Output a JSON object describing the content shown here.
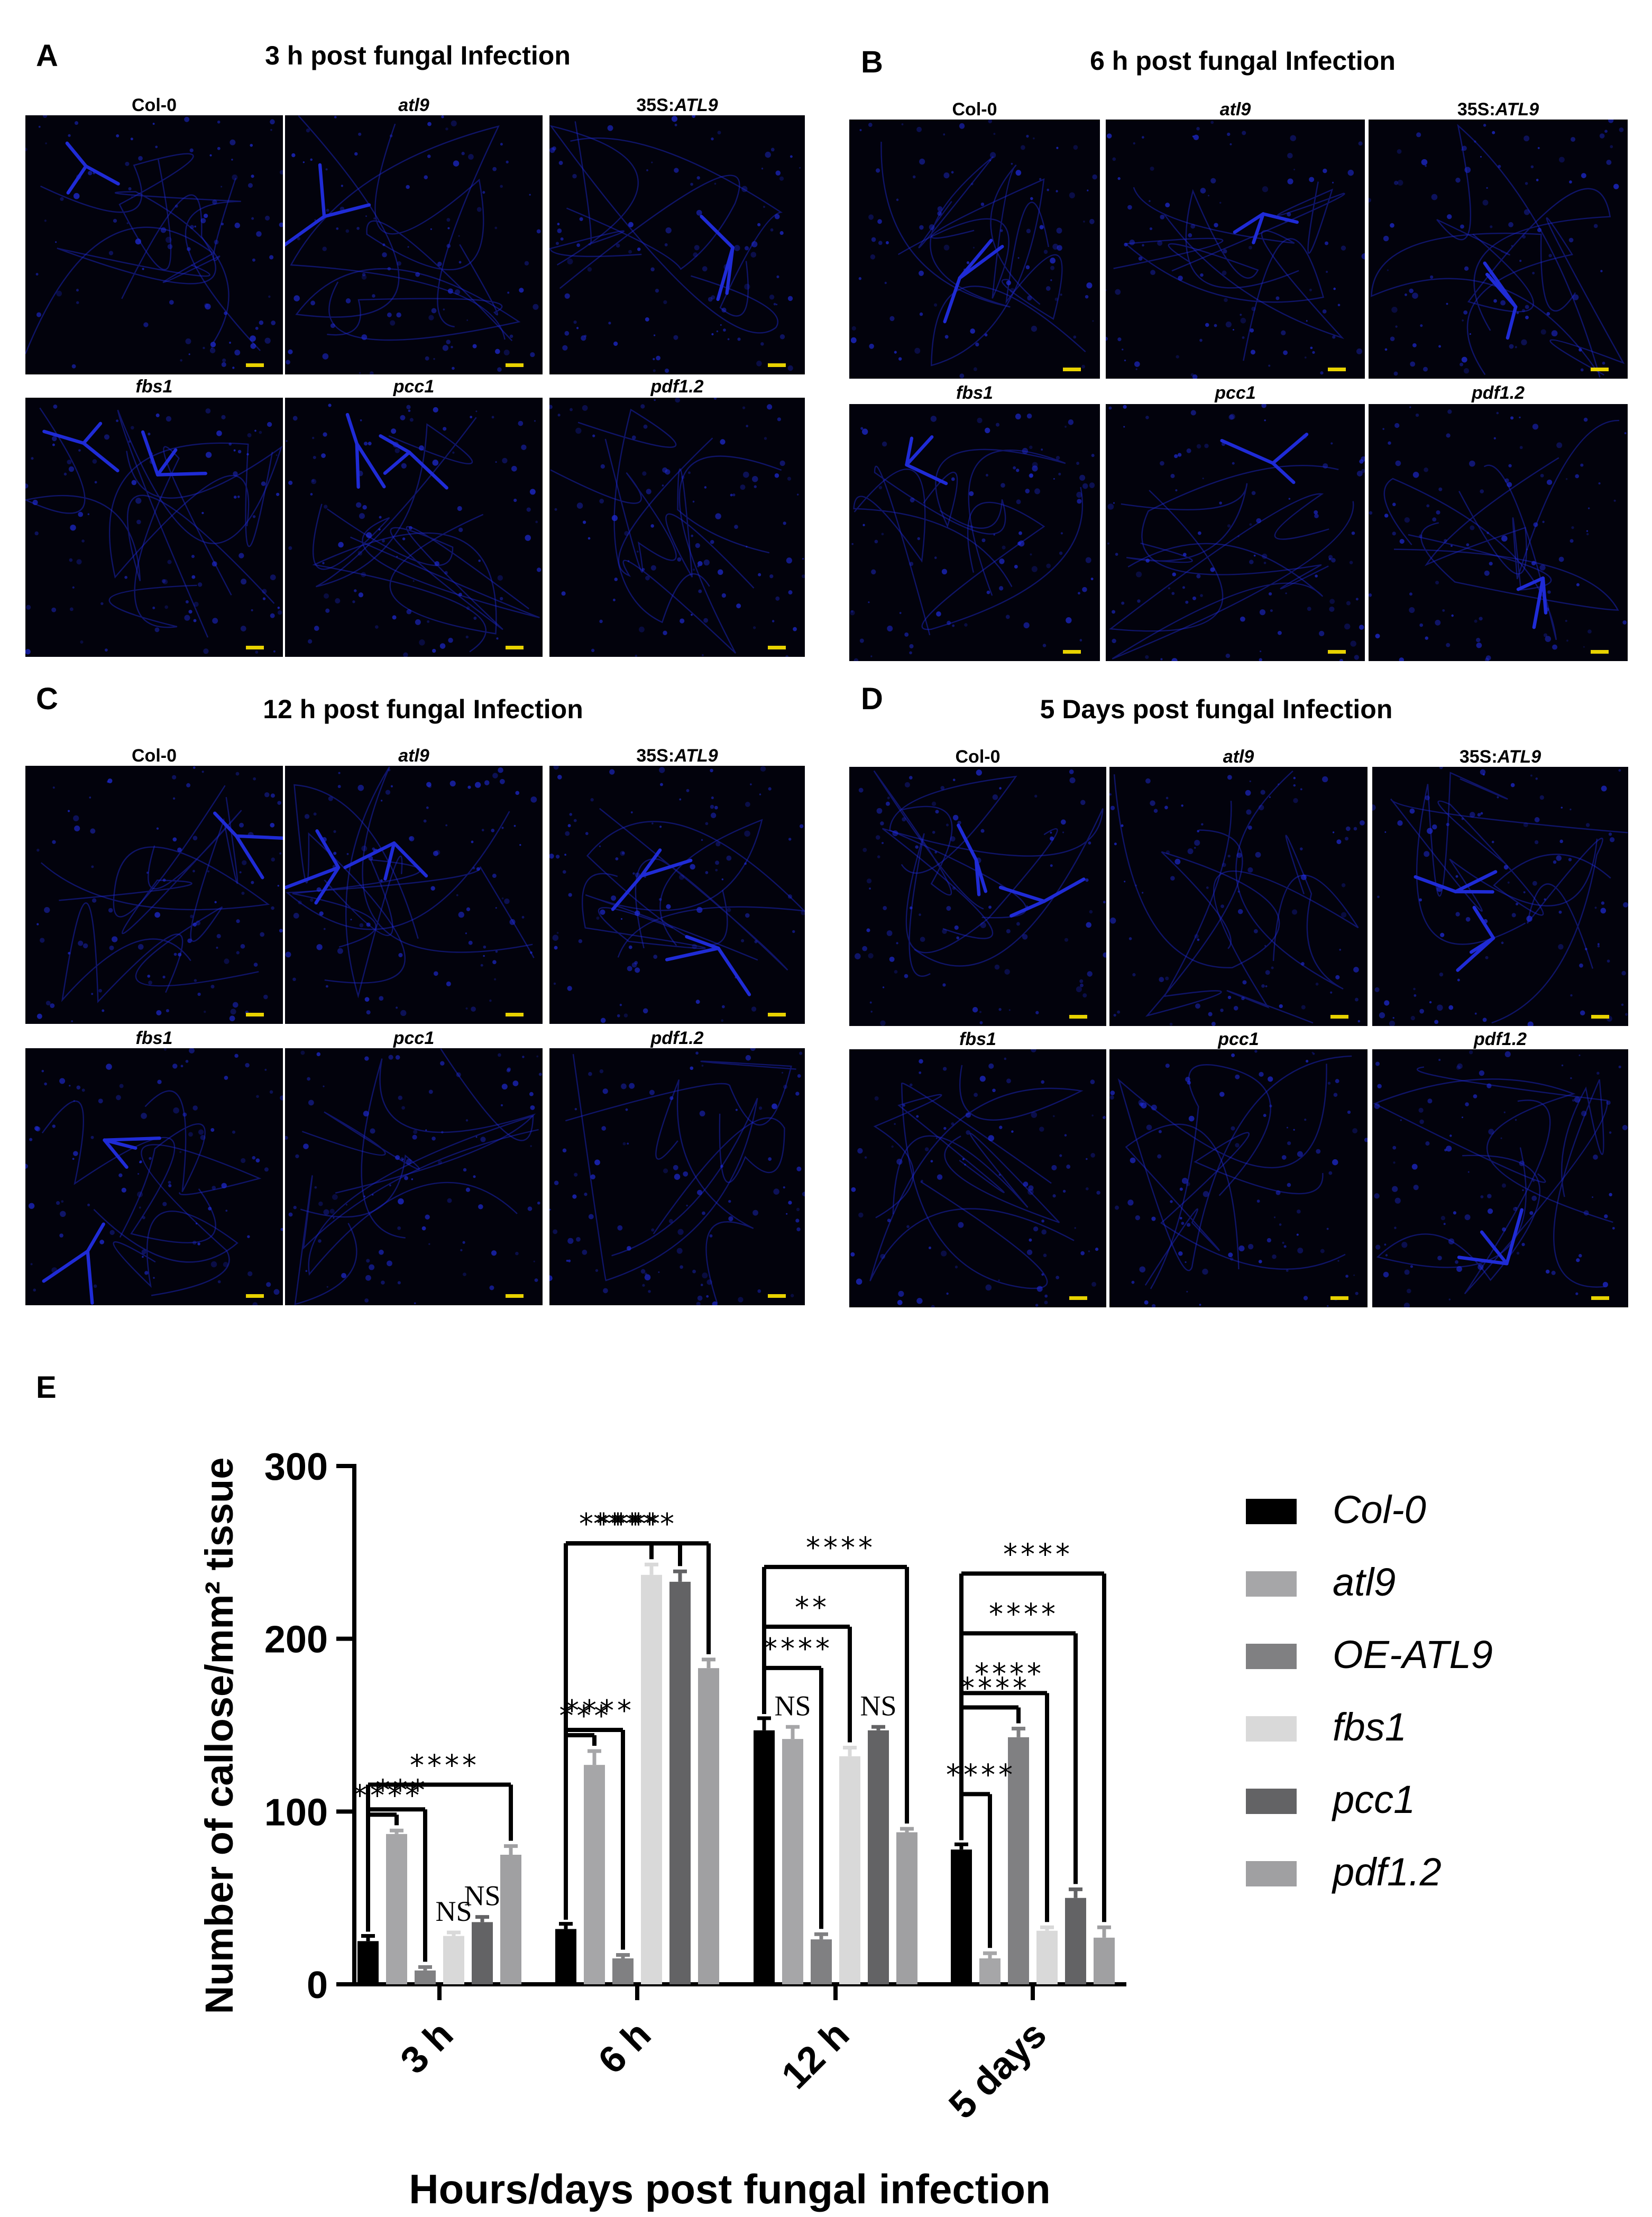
{
  "panels": [
    {
      "letter": "A",
      "title": "3 h post fungal Infection",
      "labels": [
        [
          "Col-0",
          "",
          ""
        ],
        [
          "",
          "atl9",
          ""
        ],
        [
          "35S:",
          "ATL9",
          ""
        ],
        [
          "",
          "fbs1",
          ""
        ],
        [
          "",
          "pcc1",
          ""
        ],
        [
          "",
          "pdf1.2",
          ""
        ]
      ]
    },
    {
      "letter": "B",
      "title": "6 h post fungal Infection",
      "labels": [
        [
          "Col-0",
          "",
          ""
        ],
        [
          "",
          "atl9",
          ""
        ],
        [
          "35S:",
          "ATL9",
          ""
        ],
        [
          "",
          "fbs1",
          ""
        ],
        [
          "",
          "pcc1",
          ""
        ],
        [
          "",
          "pdf1.2",
          ""
        ]
      ]
    },
    {
      "letter": "C",
      "title": "12 h post fungal Infection",
      "labels": [
        [
          "Col-0",
          "",
          ""
        ],
        [
          "",
          "atl9",
          ""
        ],
        [
          "35S:",
          "ATL9",
          ""
        ],
        [
          "",
          "fbs1",
          ""
        ],
        [
          "",
          "pcc1",
          ""
        ],
        [
          "",
          "pdf1.2",
          ""
        ]
      ]
    },
    {
      "letter": "D",
      "title": "5 Days post fungal Infection",
      "labels": [
        [
          "Col-0",
          "",
          ""
        ],
        [
          "",
          "atl9",
          ""
        ],
        [
          "35S:",
          "ATL9",
          ""
        ],
        [
          "",
          "fbs1",
          ""
        ],
        [
          "",
          "pcc1",
          ""
        ],
        [
          "",
          "pdf1.2",
          ""
        ]
      ]
    }
  ],
  "panel_e_letter": "E",
  "colors": {
    "micrograph_bg": "#02020c",
    "stain": "#1f2bd6",
    "scalebar": "#e8d200"
  },
  "chart_data": {
    "type": "bar",
    "xlabel": "Hours/days post fungal infection",
    "ylabel": "Number of callose/mm² tissue",
    "ylim": [
      0,
      300
    ],
    "yticks": [
      0,
      100,
      200,
      300
    ],
    "categories": [
      "3 h",
      "6 h",
      "12 h",
      "5 days"
    ],
    "series": [
      {
        "name": "Col-0",
        "color": "#000000",
        "values": [
          25,
          32,
          147,
          78
        ],
        "errors": [
          3,
          3,
          7,
          3
        ]
      },
      {
        "name": "atl9",
        "color": "#a6a6a8",
        "values": [
          87,
          127,
          142,
          15
        ],
        "errors": [
          2,
          8,
          7,
          3
        ]
      },
      {
        "name": "OE-ATL9",
        "color": "#808082",
        "values": [
          8,
          15,
          26,
          143
        ],
        "errors": [
          2,
          2,
          3,
          5
        ]
      },
      {
        "name": "fbs1",
        "color": "#d9d9d9",
        "values": [
          28,
          237,
          132,
          31
        ],
        "errors": [
          2,
          6,
          5,
          2
        ]
      },
      {
        "name": "pcc1",
        "color": "#636365",
        "values": [
          36,
          233,
          147,
          50
        ],
        "errors": [
          3,
          6,
          2,
          5
        ]
      },
      {
        "name": "pdf1.2",
        "color": "#a0a0a2",
        "values": [
          75,
          183,
          88,
          27
        ],
        "errors": [
          5,
          5,
          2,
          6
        ]
      }
    ],
    "legend_position": "right",
    "annotations": [
      {
        "group": "3 h",
        "from": "Col-0",
        "to": "atl9",
        "label": "****"
      },
      {
        "group": "3 h",
        "from": "Col-0",
        "to": "OE-ATL9",
        "label": "***"
      },
      {
        "group": "3 h",
        "from": "Col-0",
        "to": "pdf1.2",
        "label": "****"
      },
      {
        "group": "3 h",
        "on": "fbs1",
        "label": "NS"
      },
      {
        "group": "3 h",
        "on": "pcc1",
        "label": "NS"
      },
      {
        "group": "6 h",
        "from": "Col-0",
        "to": "atl9",
        "label": "***"
      },
      {
        "group": "6 h",
        "from": "Col-0",
        "to": "OE-ATL9",
        "label": "****"
      },
      {
        "group": "6 h",
        "from": "Col-0",
        "to": "fbs1",
        "label": "****"
      },
      {
        "group": "6 h",
        "from": "Col-0",
        "to": "pcc1",
        "label": "****"
      },
      {
        "group": "6 h",
        "from": "Col-0",
        "to": "pdf1.2",
        "label": "****"
      },
      {
        "group": "12 h",
        "on": "atl9",
        "label": "NS"
      },
      {
        "group": "12 h",
        "from": "Col-0",
        "to": "OE-ATL9",
        "label": "****"
      },
      {
        "group": "12 h",
        "from": "Col-0",
        "to": "fbs1",
        "label": "**"
      },
      {
        "group": "12 h",
        "on": "pcc1",
        "label": "NS"
      },
      {
        "group": "12 h",
        "from": "Col-0",
        "to": "pdf1.2",
        "label": "****"
      },
      {
        "group": "5 days",
        "from": "Col-0",
        "to": "atl9",
        "label": "****"
      },
      {
        "group": "5 days",
        "from": "Col-0",
        "to": "OE-ATL9",
        "label": "****"
      },
      {
        "group": "5 days",
        "from": "Col-0",
        "to": "fbs1",
        "label": "****"
      },
      {
        "group": "5 days",
        "from": "Col-0",
        "to": "pcc1",
        "label": "****"
      },
      {
        "group": "5 days",
        "from": "Col-0",
        "to": "pdf1.2",
        "label": "****"
      }
    ]
  }
}
